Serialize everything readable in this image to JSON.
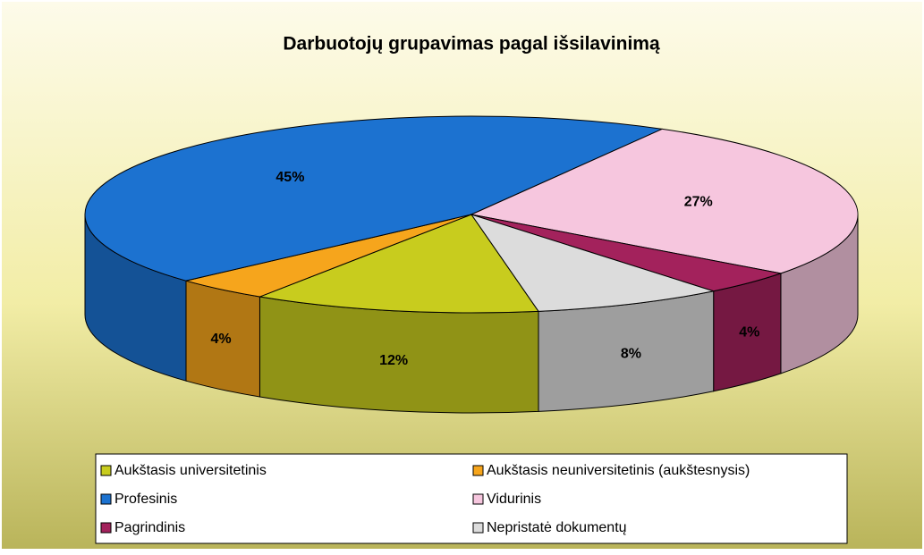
{
  "chart_data": {
    "type": "pie3d",
    "title": "Darbuotojų grupavimas pagal išsilavinimą",
    "categories": [
      "Aukštasis universitetinis",
      "Aukštasis neuniversitetinis (aukštesnysis)",
      "Profesinis",
      "Vidurinis",
      "Pagrindinis",
      "Nepristatė dokumentų"
    ],
    "values": [
      12,
      4,
      45,
      27,
      4,
      8
    ],
    "value_labels": [
      "12%",
      "4%",
      "45%",
      "27%",
      "4%",
      "8%"
    ],
    "colors": [
      "#c8cc1e",
      "#f6a51c",
      "#1c72d0",
      "#f6c6de",
      "#a3225c",
      "#dcdcdc"
    ],
    "legend": "bottom"
  }
}
